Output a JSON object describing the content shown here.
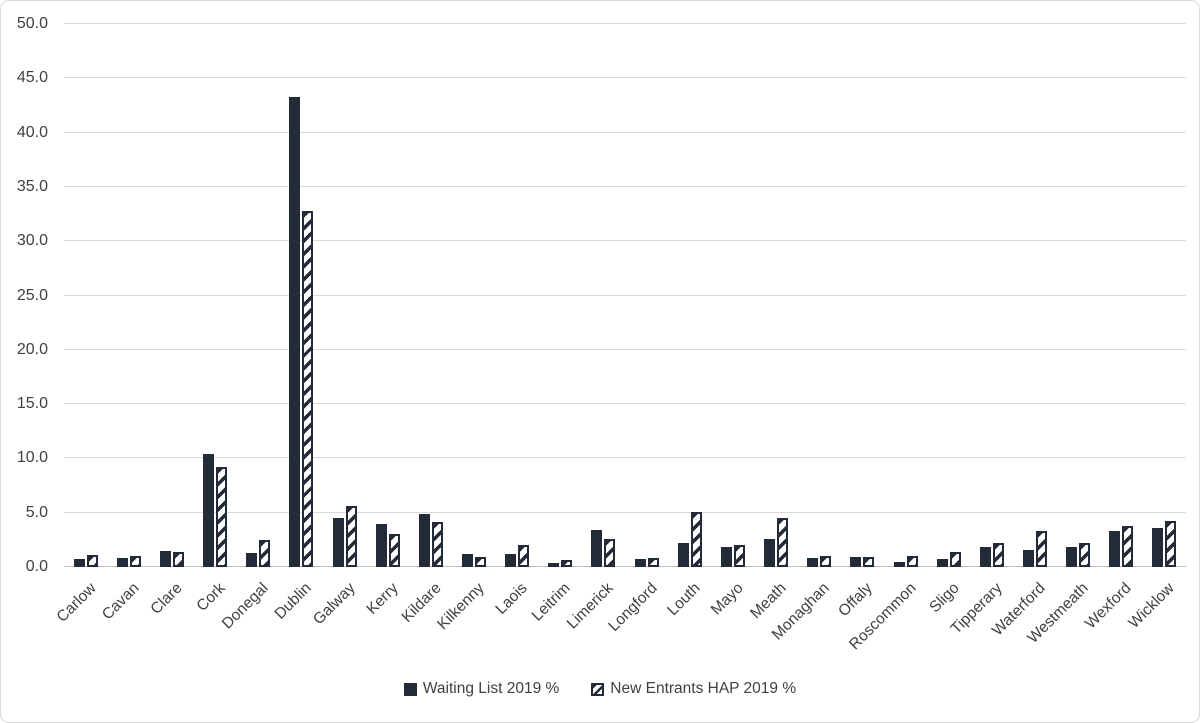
{
  "chart_data": {
    "type": "bar",
    "bar_orientation": "vertical",
    "title": "",
    "xlabel": "",
    "ylabel": "",
    "grid": true,
    "legend_position": "bottom-center",
    "ylim": [
      0,
      50
    ],
    "ytick_step": 5,
    "ytick_labels": [
      "0.0",
      "5.0",
      "10.0",
      "15.0",
      "20.0",
      "25.0",
      "30.0",
      "35.0",
      "40.0",
      "45.0",
      "50.0"
    ],
    "categories": [
      "Carlow",
      "Cavan",
      "Clare",
      "Cork",
      "Donegal",
      "Dublin",
      "Galway",
      "Kerry",
      "Kildare",
      "Kilkenny",
      "Laois",
      "Leitrim",
      "Limerick",
      "Longford",
      "Louth",
      "Mayo",
      "Meath",
      "Monaghan",
      "Offaly",
      "Roscommon",
      "Sligo",
      "Tipperary",
      "Waterford",
      "Westmeath",
      "Wexford",
      "Wicklow"
    ],
    "series": [
      {
        "name": "Waiting List 2019 %",
        "style": "solid",
        "values": [
          0.7,
          0.8,
          1.5,
          10.4,
          1.3,
          43.3,
          4.5,
          4.0,
          4.9,
          1.2,
          1.2,
          0.4,
          3.4,
          0.7,
          2.2,
          1.8,
          2.6,
          0.8,
          0.9,
          0.5,
          0.7,
          1.8,
          1.6,
          1.8,
          3.3,
          3.6
        ]
      },
      {
        "name": "New Entrants HAP 2019 %",
        "style": "hatched",
        "values": [
          1.1,
          1.0,
          1.4,
          9.2,
          2.5,
          32.8,
          5.6,
          3.0,
          4.1,
          0.9,
          2.0,
          0.6,
          2.6,
          0.8,
          5.1,
          2.0,
          4.5,
          1.0,
          0.9,
          1.0,
          1.4,
          2.2,
          3.3,
          2.2,
          3.8,
          4.2
        ]
      }
    ],
    "colors": {
      "bar": "#232B38",
      "hatch_bg": "#FFFFFF",
      "gridline": "#D9D9D9",
      "axis_line": "#BFBFBF",
      "text": "#404040",
      "frame_border": "#D9D9D9",
      "background": "#FFFFFF"
    }
  }
}
